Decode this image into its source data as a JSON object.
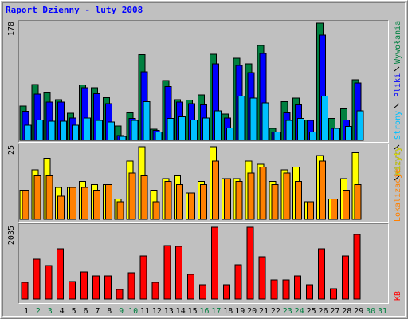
{
  "chart_data": {
    "type": "bar",
    "title": "Raport Dzienny -  luty 2008",
    "categories": [
      "1",
      "2",
      "3",
      "4",
      "5",
      "6",
      "7",
      "8",
      "9",
      "10",
      "11",
      "12",
      "13",
      "14",
      "15",
      "16",
      "17",
      "18",
      "19",
      "20",
      "21",
      "22",
      "23",
      "24",
      "25",
      "26",
      "27",
      "28",
      "29",
      "30",
      "31"
    ],
    "category_colors": [
      "#000000",
      "#008040",
      "#008040",
      "#000000",
      "#000000",
      "#000000",
      "#000000",
      "#000000",
      "#008040",
      "#008040",
      "#000000",
      "#000000",
      "#000000",
      "#000000",
      "#000000",
      "#008040",
      "#008040",
      "#000000",
      "#000000",
      "#000000",
      "#000000",
      "#000000",
      "#008040",
      "#008040",
      "#000000",
      "#000000",
      "#000000",
      "#000000",
      "#000000",
      "#008040",
      "#008040"
    ],
    "panels": [
      {
        "ylim": [
          0,
          178
        ],
        "yticks": [
          178
        ],
        "series": [
          {
            "name": "Wywołania",
            "color": "#008040",
            "values": [
              52,
              85,
              73,
              62,
              41,
              84,
              80,
              65,
              22,
              42,
              130,
              17,
              91,
              62,
              61,
              69,
              131,
              40,
              125,
              116,
              144,
              18,
              59,
              64,
              31,
              178,
              33,
              48,
              92,
              null,
              null
            ]
          },
          {
            "name": "Pliki",
            "color": "#0000ff",
            "values": [
              44,
              70,
              58,
              58,
              34,
              80,
              71,
              56,
              7,
              33,
              104,
              15,
              82,
              58,
              56,
              54,
              116,
              34,
              114,
              103,
              132,
              13,
              42,
              54,
              30,
              160,
              18,
              31,
              87,
              null,
              null
            ]
          },
          {
            "name": "Strony",
            "color": "#00c0ff",
            "values": [
              23,
              31,
              29,
              29,
              23,
              34,
              30,
              28,
              6,
              30,
              59,
              13,
              33,
              36,
              31,
              34,
              45,
              19,
              67,
              64,
              57,
              13,
              30,
              33,
              13,
              67,
              18,
              21,
              45,
              null,
              null
            ]
          }
        ]
      },
      {
        "ylim": [
          0,
          25
        ],
        "yticks": [
          25
        ],
        "series": [
          {
            "name": "Wizyty",
            "color": "#ffff00",
            "values": [
              10,
              17,
              21,
              11,
              11,
              13,
              12,
              12,
              7,
              20,
              25,
              10,
              14,
              15,
              9,
              13,
              25,
              14,
              14,
              20,
              19,
              13,
              17,
              18,
              6,
              22,
              7,
              14,
              23,
              null,
              null
            ]
          },
          {
            "name": "Lokalizacje",
            "color": "#ff8000",
            "values": [
              10,
              15,
              15,
              8,
              11,
              11,
              10,
              12,
              6,
              16,
              15,
              6,
              13,
              12,
              9,
              12,
              20,
              14,
              13,
              16,
              18,
              12,
              16,
              13,
              6,
              20,
              7,
              10,
              12,
              null,
              null
            ]
          }
        ]
      },
      {
        "ylim": [
          0,
          2035
        ],
        "yticks": [
          2035
        ],
        "series": [
          {
            "name": "KB",
            "color": "#ff0000",
            "values": [
              475,
              1130,
              950,
              1425,
              497,
              768,
              655,
              655,
              271,
              746,
              1221,
              475,
              1514,
              1492,
              700,
              407,
              2035,
              407,
              972,
              2035,
              1198,
              543,
              543,
              655,
              407,
              1425,
              294,
              1221,
              1831,
              null,
              null
            ]
          }
        ]
      }
    ]
  }
}
